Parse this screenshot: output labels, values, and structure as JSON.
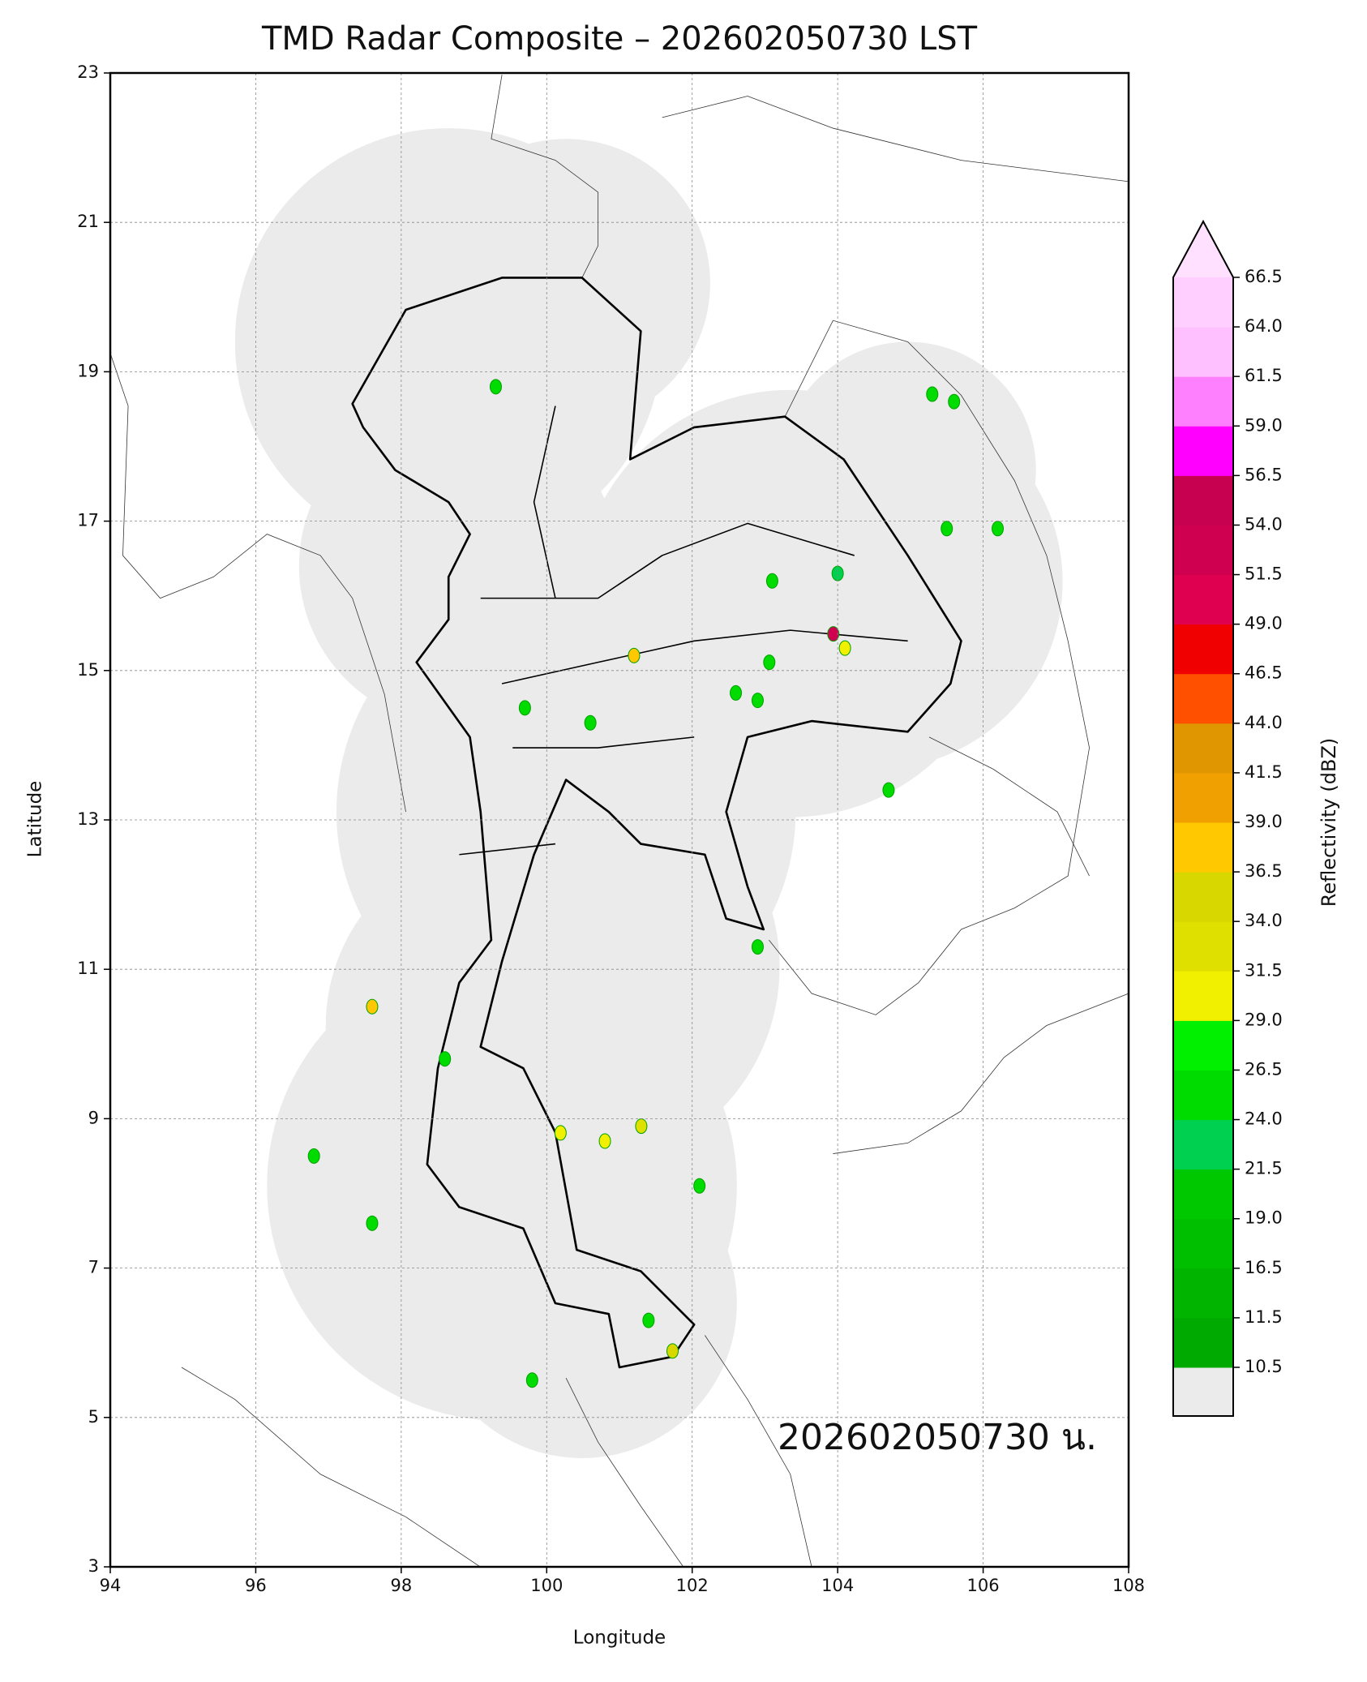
{
  "chart_data": {
    "type": "map",
    "title": "TMD Radar Composite – 202602050730 LST",
    "xlabel": "Longitude",
    "ylabel": "Latitude",
    "annotation": "202602050730 น.",
    "xlim": [
      94,
      108
    ],
    "ylim": [
      3,
      23
    ],
    "xticks": [
      94,
      96,
      98,
      100,
      102,
      104,
      106,
      108
    ],
    "yticks": [
      3,
      5,
      7,
      9,
      11,
      13,
      15,
      17,
      19,
      21,
      23
    ],
    "grid": true,
    "echoes": {
      "x": [
        105.3,
        105.6,
        106.2,
        105.5,
        104.0,
        103.1,
        103.06,
        102.6,
        102.9,
        103.94,
        104.1,
        101.2,
        100.6,
        99.7,
        99.3,
        98.6,
        97.6,
        100.19,
        100.8,
        101.3,
        102.1,
        101.73,
        101.4,
        99.8,
        96.8,
        97.6,
        104.7,
        102.9
      ],
      "y": [
        18.7,
        18.6,
        16.9,
        16.9,
        16.3,
        16.2,
        15.11,
        14.7,
        14.6,
        15.49,
        15.3,
        15.2,
        14.3,
        14.5,
        18.8,
        9.8,
        10.5,
        8.81,
        8.7,
        8.9,
        8.1,
        5.89,
        6.3,
        5.5,
        8.5,
        7.6,
        13.4,
        11.3
      ],
      "values": [
        24,
        26,
        24,
        24,
        21.5,
        24,
        24,
        24,
        24,
        52,
        30,
        36.5,
        24,
        24,
        24,
        24,
        38,
        30,
        30,
        31.5,
        24,
        34,
        24,
        24,
        24,
        24,
        24,
        24
      ]
    },
    "colorbar": {
      "label": "Reflectivity (dBZ)",
      "ticks": [
        10.5,
        11.5,
        16.5,
        {
          "value": 19,
          "label": "19.0"
        },
        21.5,
        {
          "value": 24,
          "label": "24.0"
        },
        26.5,
        {
          "value": 29,
          "label": "29.0"
        },
        31.5,
        {
          "value": 34,
          "label": "34.0"
        },
        36.5,
        {
          "value": 39,
          "label": "39.0"
        },
        41.5,
        {
          "value": 44,
          "label": "44.0"
        },
        46.5,
        {
          "value": 49,
          "label": "49.0"
        },
        51.5,
        {
          "value": 54,
          "label": "54.0"
        },
        56.5,
        {
          "value": 59,
          "label": "59.0"
        },
        61.5,
        {
          "value": 64,
          "label": "64.0"
        },
        66.5
      ],
      "colors": [
        "#00aa00",
        "#00b400",
        "#00be00",
        "#00c800",
        "#00d050",
        "#00dc00",
        "#00f000",
        "#f0f000",
        "#e0e000",
        "#d8d800",
        "#ffc800",
        "#f0a000",
        "#e09600",
        "#ff5000",
        "#f00000",
        "#e00050",
        "#d00050",
        "#c80050",
        "#ff00ff",
        "#ff80ff",
        "#ffc0ff",
        "#ffd0ff"
      ],
      "extend_color": "#ffe0ff",
      "under_color": "#ebebeb"
    }
  }
}
